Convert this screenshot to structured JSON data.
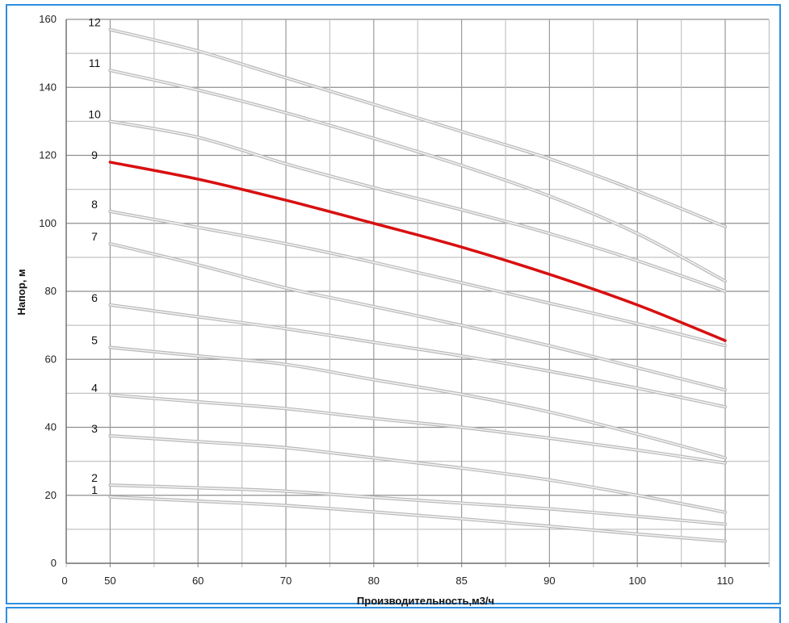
{
  "chart_data": {
    "type": "line",
    "title": "",
    "xlabel": "Производительность,м3/ч",
    "ylabel": "Напор, м",
    "x_tick_labels": [
      "0",
      "50",
      "60",
      "70",
      "80",
      "85",
      "90",
      "100",
      "110"
    ],
    "x": [
      "50",
      "60",
      "70",
      "80",
      "85",
      "90",
      "100",
      "110"
    ],
    "ylim": [
      0,
      160
    ],
    "y_ticks": [
      0,
      20,
      40,
      60,
      80,
      100,
      120,
      140,
      160
    ],
    "grid": true,
    "colors": {
      "highlight": "#d81010",
      "curve": "#c8c8c8",
      "grid": "#9a9a9a",
      "frame": "#2d8fe0"
    },
    "series": [
      {
        "name": "1",
        "values": [
          19.5,
          18.3,
          17,
          15.1,
          13.1,
          10.9,
          8.6,
          6.5
        ]
      },
      {
        "name": "2",
        "values": [
          23,
          22.2,
          21.2,
          19.4,
          17.7,
          16,
          13.8,
          11.5
        ]
      },
      {
        "name": "3",
        "values": [
          37.5,
          35.8,
          34,
          31,
          28,
          24.5,
          20,
          15
        ]
      },
      {
        "name": "4",
        "values": [
          49.5,
          47.5,
          45.5,
          42.6,
          40,
          36.8,
          33.3,
          29.5
        ]
      },
      {
        "name": "5",
        "values": [
          63.5,
          61,
          58.5,
          54,
          49.7,
          44.5,
          38,
          31
        ]
      },
      {
        "name": "6",
        "values": [
          76,
          72.5,
          69,
          65,
          61,
          56.5,
          51.5,
          46
        ]
      },
      {
        "name": "7",
        "values": [
          94,
          87.8,
          81,
          75.5,
          70,
          64,
          57.5,
          51
        ]
      },
      {
        "name": "8",
        "values": [
          103.5,
          98.8,
          94,
          88.5,
          82.5,
          76.5,
          70.5,
          64
        ]
      },
      {
        "name": "9",
        "values": [
          118,
          113,
          106.8,
          100,
          93,
          85,
          76,
          65.5
        ],
        "highlight": true
      },
      {
        "name": "10",
        "values": [
          130,
          125.3,
          117.5,
          110.5,
          104,
          97,
          89,
          80
        ]
      },
      {
        "name": "11",
        "values": [
          145,
          139.2,
          132.5,
          125,
          117,
          108,
          97,
          83
        ]
      },
      {
        "name": "12",
        "values": [
          157,
          150.7,
          142.8,
          135,
          127,
          119,
          109.5,
          99
        ]
      }
    ]
  }
}
